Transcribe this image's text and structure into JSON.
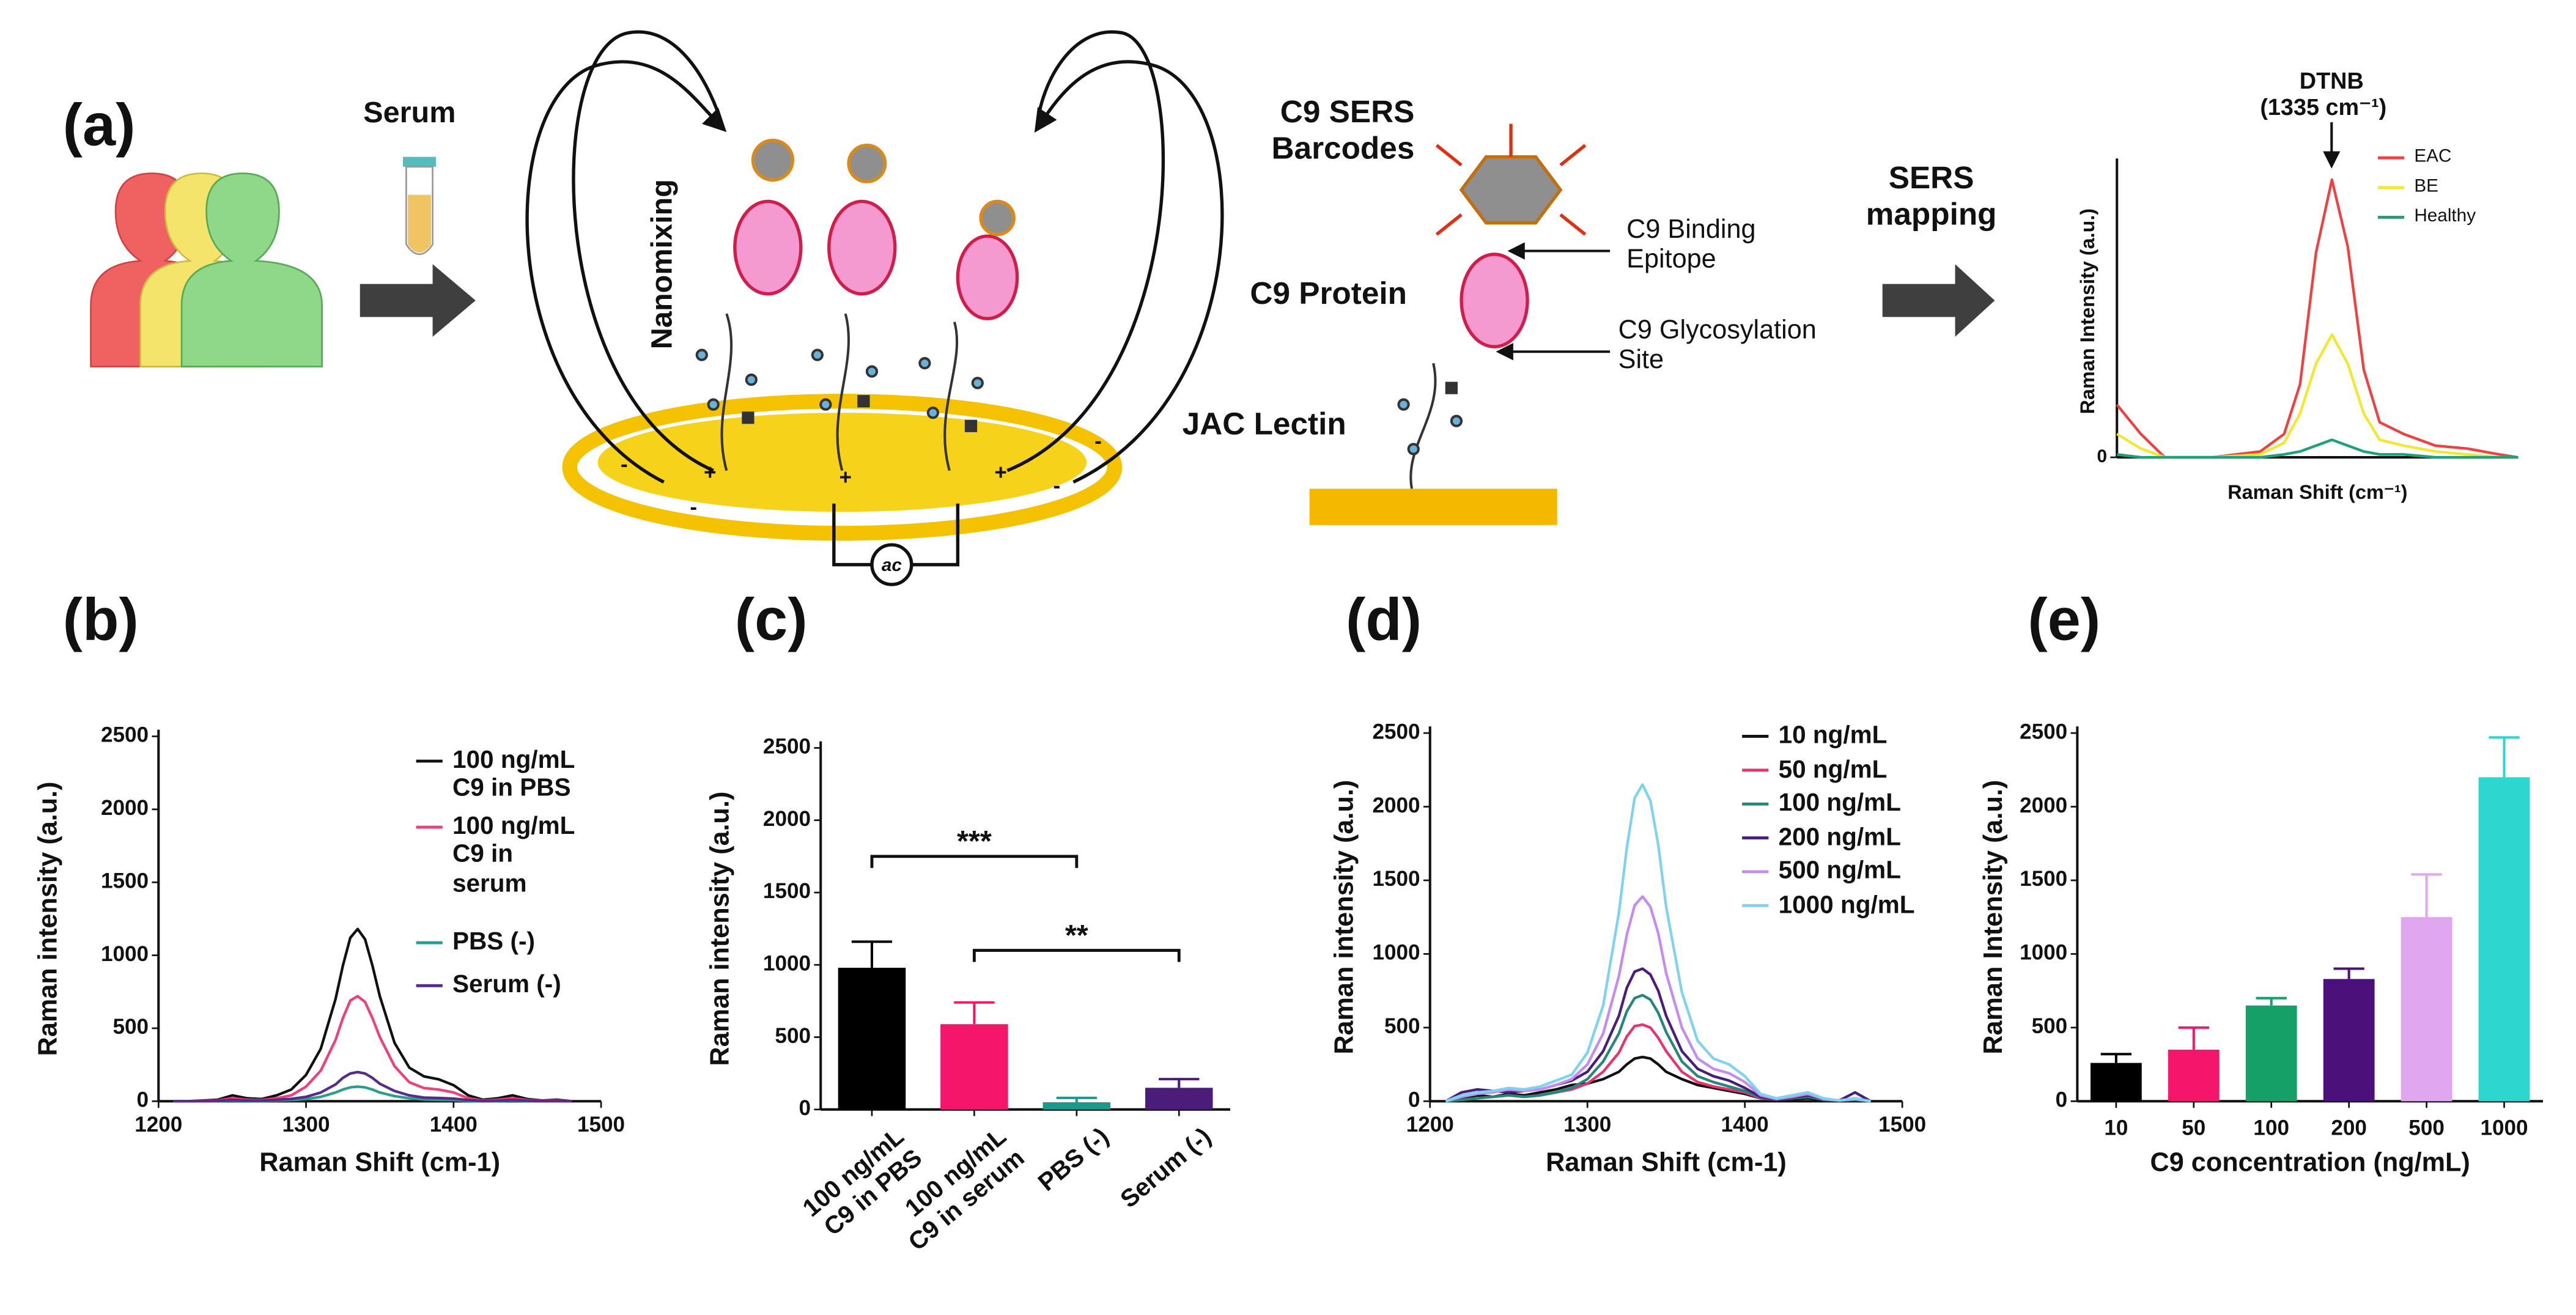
{
  "diagram": {
    "label": "(a)",
    "serum": "Serum",
    "nanomixing": "Nanomixing",
    "barcodes": "C9 SERS\nBarcodes",
    "binding_epitope": "C9 Binding\nEpitope",
    "protein": "C9 Protein",
    "glycosylation_site": "C9 Glycosylation\nSite",
    "lectin": "JAC Lectin",
    "mapping": "SERS\nmapping",
    "ac": "ac",
    "signs": [
      "+",
      "+",
      "+",
      "-",
      "-",
      "-",
      "-"
    ]
  },
  "chart_data": [
    {
      "type": "line",
      "title": "DTNB",
      "subtitle": "(1335 cm⁻¹)",
      "xlabel": "Raman Shift (cm⁻¹)",
      "ylabel": "Raman Intensity (a.u.)",
      "x": [
        1200,
        1215,
        1230,
        1260,
        1290,
        1305,
        1315,
        1325,
        1335,
        1345,
        1355,
        1365,
        1380,
        1400,
        1420,
        1440,
        1452
      ],
      "xlim": [
        1200,
        1452
      ],
      "ylim": [
        0,
        100
      ],
      "yticks": [
        0
      ],
      "series": [
        {
          "name": "EAC",
          "color": "#f04040",
          "values": [
            18,
            8,
            0,
            0,
            2,
            8,
            25,
            70,
            95,
            72,
            30,
            12,
            8,
            4,
            3,
            1,
            0
          ]
        },
        {
          "name": "BE",
          "color": "#f2e830",
          "values": [
            8,
            3,
            0,
            0,
            1,
            5,
            15,
            32,
            42,
            32,
            15,
            6,
            4,
            2,
            1,
            0,
            0
          ]
        },
        {
          "name": "Healthy",
          "color": "#1aa37a",
          "values": [
            1,
            0,
            0,
            0,
            0,
            1,
            2,
            4,
            6,
            4,
            2,
            1,
            1,
            0,
            0,
            0,
            0
          ]
        }
      ]
    },
    {
      "type": "line",
      "label": "(b)",
      "xlabel": "Raman Shift (cm-1)",
      "ylabel": "Raman intensity (a.u.)",
      "x": [
        1210,
        1220,
        1230,
        1240,
        1250,
        1260,
        1270,
        1280,
        1290,
        1300,
        1310,
        1320,
        1325,
        1330,
        1335,
        1340,
        1345,
        1350,
        1360,
        1370,
        1380,
        1390,
        1400,
        1410,
        1420,
        1430,
        1440,
        1450,
        1460,
        1470,
        1480
      ],
      "xlim": [
        1200,
        1500
      ],
      "xticks": [
        1200,
        1300,
        1400,
        1500
      ],
      "ylim": [
        0,
        2500
      ],
      "yticks": [
        0,
        500,
        1000,
        1500,
        2000,
        2500
      ],
      "series": [
        {
          "name": "100 ng/mL\nC9 in PBS",
          "color": "#111111",
          "values": [
            0,
            0,
            5,
            10,
            40,
            20,
            15,
            40,
            80,
            180,
            360,
            700,
            930,
            1120,
            1180,
            1110,
            930,
            720,
            400,
            230,
            170,
            150,
            110,
            40,
            10,
            20,
            40,
            15,
            5,
            10,
            0
          ]
        },
        {
          "name": "100 ng/mL\nC9 in\nserum",
          "color": "#f0407a",
          "values": [
            0,
            0,
            3,
            5,
            20,
            10,
            8,
            20,
            40,
            100,
            210,
            420,
            570,
            690,
            720,
            680,
            570,
            440,
            240,
            130,
            90,
            80,
            60,
            20,
            5,
            10,
            20,
            8,
            3,
            5,
            0
          ]
        },
        {
          "name": "PBS (-)",
          "color": "#2a9d8f",
          "values": [
            0,
            0,
            0,
            2,
            5,
            3,
            2,
            5,
            8,
            15,
            30,
            60,
            80,
            95,
            100,
            95,
            80,
            60,
            35,
            20,
            12,
            10,
            8,
            3,
            1,
            2,
            5,
            2,
            0,
            1,
            0
          ]
        },
        {
          "name": "Serum (-)",
          "color": "#5a2a8a",
          "values": [
            0,
            0,
            1,
            3,
            10,
            5,
            4,
            10,
            16,
            30,
            60,
            115,
            160,
            190,
            200,
            190,
            160,
            120,
            70,
            40,
            25,
            22,
            18,
            8,
            2,
            4,
            10,
            4,
            1,
            2,
            0
          ]
        }
      ]
    },
    {
      "type": "bar",
      "label": "(c)",
      "ylabel": "Raman intensity (a.u.)",
      "categories": [
        "100 ng/mL\nC9 in PBS",
        "100 ng/mL\nC9 in serum",
        "PBS (-)",
        "Serum (-)"
      ],
      "values": [
        980,
        590,
        50,
        150
      ],
      "errors": [
        180,
        150,
        30,
        60
      ],
      "colors": [
        "#000000",
        "#f5156a",
        "#1a9a8a",
        "#4b1c7a"
      ],
      "ylim": [
        0,
        2500
      ],
      "yticks": [
        0,
        500,
        1000,
        1500,
        2000,
        2500
      ],
      "annotations": [
        {
          "text": "***",
          "from": 0,
          "to": 2,
          "y": 1750
        },
        {
          "text": "**",
          "from": 1,
          "to": 3,
          "y": 1100
        }
      ]
    },
    {
      "type": "line",
      "label": "(d)",
      "xlabel": "Raman Shift (cm-1)",
      "ylabel": "Raman intensity (a.u.)",
      "x": [
        1210,
        1220,
        1230,
        1240,
        1250,
        1260,
        1270,
        1280,
        1290,
        1300,
        1310,
        1320,
        1325,
        1330,
        1335,
        1340,
        1345,
        1350,
        1360,
        1370,
        1380,
        1390,
        1400,
        1410,
        1420,
        1430,
        1440,
        1450,
        1460,
        1470,
        1480
      ],
      "xlim": [
        1200,
        1500
      ],
      "xticks": [
        1200,
        1300,
        1400,
        1500
      ],
      "ylim": [
        0,
        2500
      ],
      "yticks": [
        0,
        500,
        1000,
        1500,
        2000,
        2500
      ],
      "series": [
        {
          "name": "10 ng/mL",
          "color": "#111111",
          "values": [
            0,
            20,
            40,
            30,
            50,
            40,
            60,
            80,
            110,
            120,
            150,
            200,
            250,
            290,
            300,
            290,
            250,
            200,
            150,
            110,
            90,
            70,
            50,
            20,
            10,
            15,
            20,
            10,
            5,
            20,
            0
          ]
        },
        {
          "name": "50 ng/mL",
          "color": "#e8336e",
          "values": [
            0,
            10,
            20,
            30,
            40,
            30,
            40,
            60,
            80,
            120,
            200,
            330,
            440,
            510,
            520,
            500,
            430,
            340,
            200,
            130,
            100,
            80,
            60,
            20,
            10,
            20,
            30,
            10,
            5,
            10,
            0
          ]
        },
        {
          "name": "100 ng/mL",
          "color": "#23877a",
          "values": [
            0,
            10,
            20,
            30,
            40,
            30,
            40,
            60,
            90,
            150,
            270,
            460,
            610,
            700,
            720,
            690,
            600,
            470,
            270,
            170,
            130,
            100,
            70,
            25,
            10,
            20,
            30,
            10,
            5,
            10,
            0
          ]
        },
        {
          "name": "200 ng/mL",
          "color": "#4b1c7a",
          "values": [
            0,
            60,
            80,
            70,
            60,
            70,
            80,
            110,
            140,
            200,
            340,
            580,
            770,
            880,
            900,
            860,
            750,
            580,
            340,
            220,
            170,
            140,
            90,
            30,
            10,
            25,
            40,
            15,
            5,
            60,
            0
          ]
        },
        {
          "name": "500 ng/mL",
          "color": "#c58cf0",
          "values": [
            0,
            30,
            50,
            60,
            80,
            70,
            80,
            110,
            150,
            250,
            460,
            850,
            1130,
            1330,
            1390,
            1320,
            1140,
            870,
            500,
            290,
            220,
            190,
            130,
            40,
            15,
            30,
            50,
            15,
            5,
            15,
            0
          ]
        },
        {
          "name": "1000 ng/mL",
          "color": "#7fd3ee",
          "values": [
            0,
            40,
            60,
            70,
            90,
            80,
            100,
            140,
            180,
            330,
            650,
            1280,
            1720,
            2060,
            2150,
            2040,
            1740,
            1320,
            740,
            410,
            290,
            250,
            170,
            50,
            20,
            40,
            60,
            20,
            5,
            20,
            0
          ]
        }
      ]
    },
    {
      "type": "bar",
      "label": "(e)",
      "xlabel": "C9 concentration (ng/mL)",
      "ylabel": "Raman Intensity (a.u.)",
      "categories": [
        "10",
        "50",
        "100",
        "200",
        "500",
        "1000"
      ],
      "values": [
        260,
        350,
        650,
        830,
        1250,
        2200
      ],
      "errors": [
        60,
        150,
        50,
        70,
        290,
        270
      ],
      "colors": [
        "#000000",
        "#f5156a",
        "#15a068",
        "#4b1079",
        "#e0a6f0",
        "#2dd6cf"
      ],
      "ylim": [
        0,
        2500
      ],
      "yticks": [
        0,
        500,
        1000,
        1500,
        2000,
        2500
      ]
    }
  ]
}
